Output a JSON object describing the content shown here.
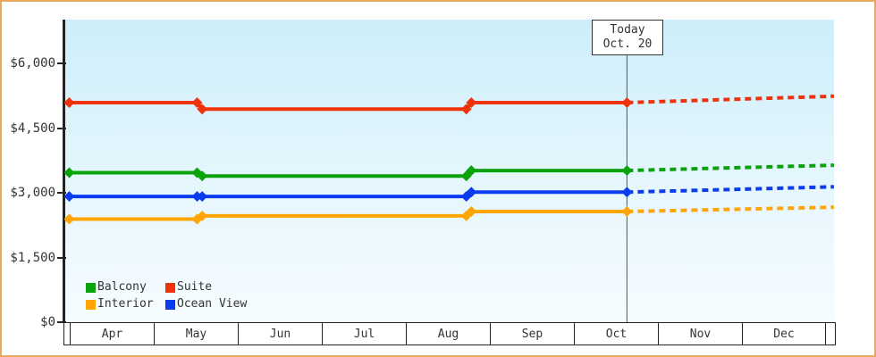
{
  "colors": {
    "frame_border": "#E9A85F",
    "plot_bg_top": "#CDEEFA",
    "plot_bg_bottom": "#F6FCFF",
    "axis": "#222222",
    "text": "#333333",
    "today_line": "#555555"
  },
  "chart_data": {
    "type": "line",
    "grid": false,
    "x_axis": {
      "categories": [
        "Apr",
        "May",
        "Jun",
        "Jul",
        "Aug",
        "Sep",
        "Oct",
        "Nov",
        "Dec"
      ],
      "today": {
        "line1": "Today",
        "line2": "Oct. 20",
        "x_months_from_apr": 6.63
      }
    },
    "y_axis": {
      "tick_labels": [
        "$6,000",
        "$4,500",
        "$3,000",
        "$1,500",
        "$0"
      ],
      "tick_values": [
        6000,
        4500,
        3000,
        1500,
        0
      ],
      "range": [
        0,
        6000
      ]
    },
    "series": [
      {
        "name": "Suite",
        "color": "#F0320A",
        "points": [
          [
            0,
            5100
          ],
          [
            1.52,
            5100
          ],
          [
            1.58,
            4950
          ],
          [
            4.72,
            4950
          ],
          [
            4.78,
            5100
          ],
          [
            6.63,
            5100
          ]
        ],
        "forecast": [
          [
            6.63,
            5100
          ],
          [
            9.09,
            5250
          ]
        ]
      },
      {
        "name": "Balcony",
        "color": "#0BA30B",
        "points": [
          [
            0,
            3475
          ],
          [
            1.52,
            3475
          ],
          [
            1.58,
            3400
          ],
          [
            4.72,
            3400
          ],
          [
            4.78,
            3525
          ],
          [
            6.63,
            3525
          ]
        ],
        "forecast": [
          [
            6.63,
            3525
          ],
          [
            9.09,
            3650
          ]
        ]
      },
      {
        "name": "Ocean View",
        "color": "#0B3BEE",
        "points": [
          [
            0,
            2925
          ],
          [
            1.52,
            2925
          ],
          [
            1.58,
            2925
          ],
          [
            4.72,
            2925
          ],
          [
            4.78,
            3025
          ],
          [
            6.63,
            3025
          ]
        ],
        "forecast": [
          [
            6.63,
            3025
          ],
          [
            9.09,
            3150
          ]
        ]
      },
      {
        "name": "Interior",
        "color": "#FFA505",
        "points": [
          [
            0,
            2400
          ],
          [
            1.52,
            2400
          ],
          [
            1.58,
            2475
          ],
          [
            4.72,
            2475
          ],
          [
            4.78,
            2575
          ],
          [
            6.63,
            2575
          ]
        ],
        "forecast": [
          [
            6.63,
            2575
          ],
          [
            9.09,
            2675
          ]
        ]
      }
    ],
    "legend": {
      "position": "bottom-left",
      "items": [
        {
          "label": "Balcony",
          "color": "#0BA30B"
        },
        {
          "label": "Suite",
          "color": "#F0320A"
        },
        {
          "label": "Interior",
          "color": "#FFA505"
        },
        {
          "label": "Ocean View",
          "color": "#0B3BEE"
        }
      ]
    }
  }
}
